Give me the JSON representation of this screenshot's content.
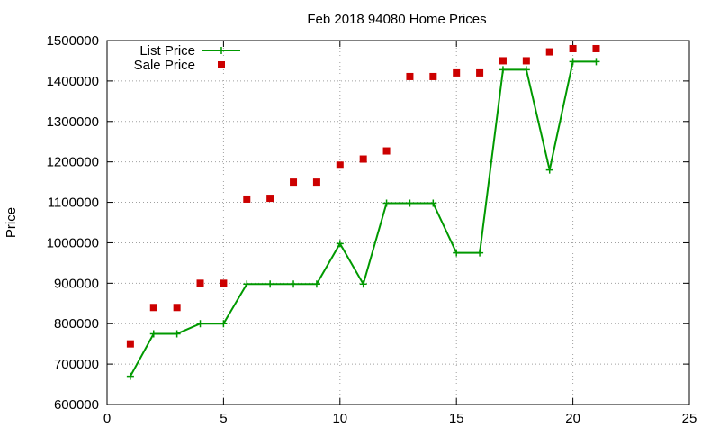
{
  "chart_data": {
    "type": "line",
    "title": "Feb 2018 94080 Home Prices",
    "xlabel": "",
    "ylabel": "Price",
    "xlim": [
      0,
      25
    ],
    "ylim": [
      600000,
      1500000
    ],
    "x_ticks": [
      "0",
      "5",
      "10",
      "15",
      "20",
      "25"
    ],
    "y_ticks": [
      "600000",
      "700000",
      "800000",
      "900000",
      "1000000",
      "1100000",
      "1200000",
      "1300000",
      "1400000",
      "1500000"
    ],
    "grid": true,
    "legend_position": "top-left",
    "series": [
      {
        "name": "List Price",
        "style": "linespoints",
        "color": "#009900",
        "x": [
          1,
          2,
          3,
          4,
          5,
          6,
          7,
          8,
          9,
          10,
          11,
          12,
          13,
          14,
          15,
          16,
          17,
          18,
          19,
          20,
          21
        ],
        "values": [
          670000,
          775000,
          775000,
          800000,
          800000,
          898000,
          898000,
          898000,
          898000,
          998000,
          898000,
          1098000,
          1098000,
          1098000,
          975000,
          975000,
          1428000,
          1428000,
          1180000,
          1448000,
          1448000
        ]
      },
      {
        "name": "Sale Price",
        "style": "points",
        "color": "#cc0000",
        "x": [
          1,
          2,
          3,
          4,
          5,
          6,
          7,
          8,
          9,
          10,
          11,
          12,
          13,
          14,
          15,
          16,
          17,
          18,
          19,
          20,
          21
        ],
        "values": [
          750000,
          840000,
          840000,
          900000,
          900000,
          1108000,
          1110000,
          1150000,
          1150000,
          1192000,
          1207000,
          1227000,
          1411000,
          1411000,
          1420000,
          1420000,
          1450000,
          1450000,
          1472000,
          1480000,
          1480000
        ]
      }
    ]
  }
}
